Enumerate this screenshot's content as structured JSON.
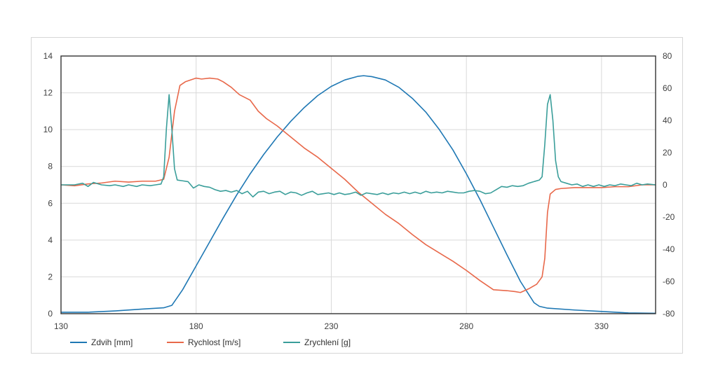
{
  "chart_data": {
    "type": "line",
    "xlim": [
      130,
      350
    ],
    "x_ticks": [
      130,
      180,
      230,
      280,
      330
    ],
    "y_left": {
      "lim": [
        0,
        14
      ],
      "ticks": [
        0,
        2,
        4,
        6,
        8,
        10,
        12,
        14
      ]
    },
    "y_right": {
      "lim": [
        -80,
        80
      ],
      "ticks": [
        -80,
        -60,
        -40,
        -20,
        0,
        20,
        40,
        60,
        80
      ]
    },
    "grid": true,
    "legend_position": "bottom",
    "series": [
      {
        "name": "Zdvih [mm]",
        "color": "#1f78b4",
        "axis": "left",
        "points": [
          [
            130,
            0.08
          ],
          [
            140,
            0.08
          ],
          [
            150,
            0.15
          ],
          [
            160,
            0.25
          ],
          [
            168,
            0.32
          ],
          [
            171,
            0.45
          ],
          [
            175,
            1.3
          ],
          [
            180,
            2.6
          ],
          [
            185,
            3.9
          ],
          [
            190,
            5.2
          ],
          [
            195,
            6.45
          ],
          [
            200,
            7.6
          ],
          [
            205,
            8.65
          ],
          [
            210,
            9.6
          ],
          [
            215,
            10.45
          ],
          [
            220,
            11.2
          ],
          [
            225,
            11.85
          ],
          [
            230,
            12.35
          ],
          [
            235,
            12.7
          ],
          [
            240,
            12.9
          ],
          [
            242,
            12.93
          ],
          [
            245,
            12.88
          ],
          [
            250,
            12.7
          ],
          [
            255,
            12.3
          ],
          [
            260,
            11.7
          ],
          [
            265,
            10.95
          ],
          [
            270,
            10.0
          ],
          [
            275,
            8.9
          ],
          [
            280,
            7.6
          ],
          [
            285,
            6.2
          ],
          [
            290,
            4.7
          ],
          [
            295,
            3.2
          ],
          [
            300,
            1.75
          ],
          [
            305,
            0.6
          ],
          [
            307,
            0.4
          ],
          [
            310,
            0.3
          ],
          [
            320,
            0.2
          ],
          [
            330,
            0.12
          ],
          [
            340,
            0.04
          ],
          [
            350,
            0.02
          ]
        ]
      },
      {
        "name": "Rychlost [m/s]",
        "color": "#e8684a",
        "axis": "left",
        "points": [
          [
            130,
            7.0
          ],
          [
            135,
            6.95
          ],
          [
            140,
            7.05
          ],
          [
            145,
            7.1
          ],
          [
            150,
            7.2
          ],
          [
            155,
            7.15
          ],
          [
            160,
            7.2
          ],
          [
            165,
            7.2
          ],
          [
            168,
            7.3
          ],
          [
            170,
            8.5
          ],
          [
            172,
            11.0
          ],
          [
            174,
            12.4
          ],
          [
            176,
            12.6
          ],
          [
            178,
            12.7
          ],
          [
            180,
            12.8
          ],
          [
            182,
            12.75
          ],
          [
            185,
            12.8
          ],
          [
            188,
            12.75
          ],
          [
            190,
            12.6
          ],
          [
            193,
            12.3
          ],
          [
            196,
            11.9
          ],
          [
            200,
            11.6
          ],
          [
            203,
            11.0
          ],
          [
            206,
            10.6
          ],
          [
            210,
            10.2
          ],
          [
            215,
            9.6
          ],
          [
            220,
            9.0
          ],
          [
            225,
            8.5
          ],
          [
            230,
            7.9
          ],
          [
            235,
            7.3
          ],
          [
            240,
            6.6
          ],
          [
            245,
            6.0
          ],
          [
            250,
            5.4
          ],
          [
            255,
            4.9
          ],
          [
            260,
            4.3
          ],
          [
            265,
            3.75
          ],
          [
            270,
            3.3
          ],
          [
            275,
            2.85
          ],
          [
            280,
            2.35
          ],
          [
            285,
            1.8
          ],
          [
            290,
            1.3
          ],
          [
            295,
            1.25
          ],
          [
            298,
            1.2
          ],
          [
            300,
            1.15
          ],
          [
            303,
            1.35
          ],
          [
            306,
            1.6
          ],
          [
            308,
            2.0
          ],
          [
            309,
            3.0
          ],
          [
            310,
            5.5
          ],
          [
            311,
            6.5
          ],
          [
            313,
            6.75
          ],
          [
            315,
            6.8
          ],
          [
            320,
            6.85
          ],
          [
            325,
            6.85
          ],
          [
            330,
            6.85
          ],
          [
            335,
            6.9
          ],
          [
            340,
            6.9
          ],
          [
            345,
            7.0
          ],
          [
            350,
            7.0
          ]
        ]
      },
      {
        "name": "Zrychlení [g]",
        "color": "#3a9e9a",
        "axis": "right",
        "points": [
          [
            130,
            0
          ],
          [
            135,
            0
          ],
          [
            138,
            1
          ],
          [
            140,
            -1
          ],
          [
            142,
            1.5
          ],
          [
            145,
            0
          ],
          [
            148,
            -0.5
          ],
          [
            150,
            0
          ],
          [
            153,
            -1
          ],
          [
            155,
            0
          ],
          [
            158,
            -1
          ],
          [
            160,
            0
          ],
          [
            163,
            -0.5
          ],
          [
            165,
            0
          ],
          [
            167,
            0.5
          ],
          [
            168,
            5
          ],
          [
            169,
            35
          ],
          [
            170,
            56
          ],
          [
            171,
            35
          ],
          [
            172,
            10
          ],
          [
            173,
            3
          ],
          [
            175,
            2.5
          ],
          [
            177,
            2
          ],
          [
            178,
            0
          ],
          [
            179,
            -2
          ],
          [
            180,
            -1
          ],
          [
            181,
            0
          ],
          [
            183,
            -1
          ],
          [
            185,
            -1.5
          ],
          [
            187,
            -3
          ],
          [
            189,
            -4
          ],
          [
            191,
            -3.5
          ],
          [
            193,
            -4.5
          ],
          [
            195,
            -3.5
          ],
          [
            197,
            -5.5
          ],
          [
            199,
            -4
          ],
          [
            201,
            -7.5
          ],
          [
            203,
            -4.5
          ],
          [
            205,
            -4
          ],
          [
            207,
            -5.5
          ],
          [
            209,
            -4.5
          ],
          [
            211,
            -4
          ],
          [
            213,
            -6
          ],
          [
            215,
            -4.5
          ],
          [
            217,
            -5
          ],
          [
            219,
            -6.5
          ],
          [
            221,
            -5
          ],
          [
            223,
            -4
          ],
          [
            225,
            -6
          ],
          [
            227,
            -5.5
          ],
          [
            229,
            -5
          ],
          [
            231,
            -6
          ],
          [
            233,
            -5
          ],
          [
            235,
            -6
          ],
          [
            237,
            -5.5
          ],
          [
            239,
            -4.5
          ],
          [
            241,
            -6.5
          ],
          [
            243,
            -5
          ],
          [
            245,
            -5.5
          ],
          [
            247,
            -6
          ],
          [
            249,
            -5
          ],
          [
            251,
            -6
          ],
          [
            253,
            -5
          ],
          [
            255,
            -5.5
          ],
          [
            257,
            -4.5
          ],
          [
            259,
            -5.5
          ],
          [
            261,
            -4.5
          ],
          [
            263,
            -5.5
          ],
          [
            265,
            -4
          ],
          [
            267,
            -5
          ],
          [
            269,
            -4.5
          ],
          [
            271,
            -5
          ],
          [
            273,
            -4
          ],
          [
            275,
            -4.5
          ],
          [
            277,
            -5
          ],
          [
            279,
            -5
          ],
          [
            281,
            -4
          ],
          [
            283,
            -3.5
          ],
          [
            285,
            -4
          ],
          [
            287,
            -5.5
          ],
          [
            289,
            -5
          ],
          [
            291,
            -3
          ],
          [
            293,
            -1
          ],
          [
            295,
            -1.5
          ],
          [
            297,
            -0.5
          ],
          [
            299,
            -1
          ],
          [
            301,
            -0.5
          ],
          [
            303,
            1
          ],
          [
            305,
            2
          ],
          [
            307,
            3
          ],
          [
            308,
            5
          ],
          [
            309,
            25
          ],
          [
            310,
            50
          ],
          [
            311,
            56
          ],
          [
            312,
            40
          ],
          [
            313,
            15
          ],
          [
            314,
            5
          ],
          [
            315,
            2
          ],
          [
            317,
            1
          ],
          [
            319,
            0
          ],
          [
            321,
            0.5
          ],
          [
            323,
            -1
          ],
          [
            325,
            0
          ],
          [
            327,
            -1
          ],
          [
            329,
            0
          ],
          [
            331,
            -1
          ],
          [
            333,
            0
          ],
          [
            335,
            -0.5
          ],
          [
            337,
            0.5
          ],
          [
            339,
            0
          ],
          [
            341,
            -0.5
          ],
          [
            343,
            1
          ],
          [
            345,
            0
          ],
          [
            347,
            0.5
          ],
          [
            350,
            0
          ]
        ]
      }
    ]
  }
}
